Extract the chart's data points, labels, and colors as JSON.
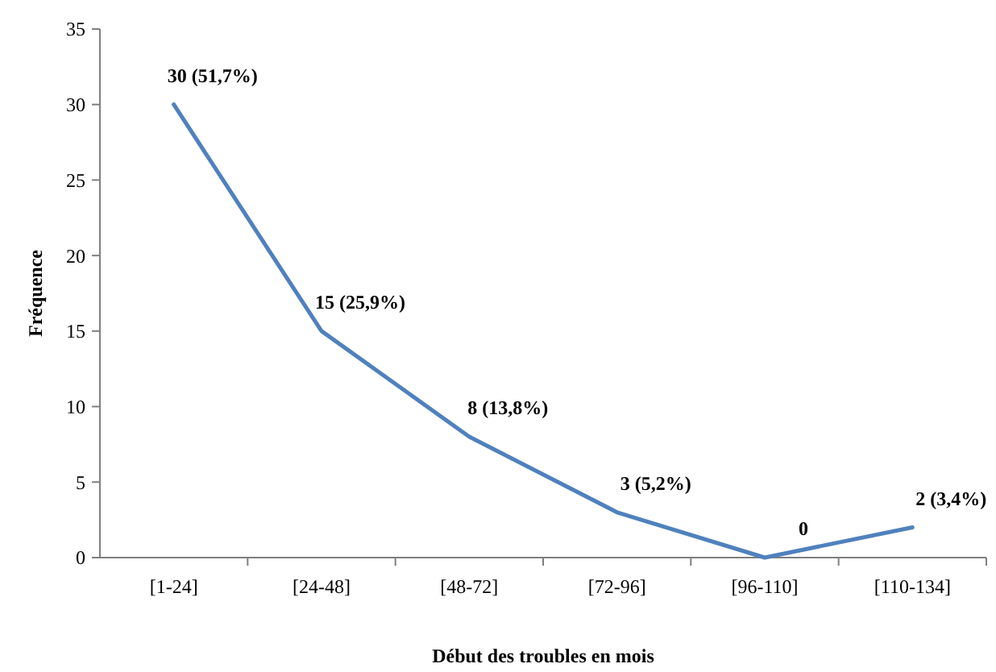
{
  "chart_data": {
    "type": "line",
    "xlabel": "Début des troubles en mois",
    "ylabel": "Fréquence",
    "categories": [
      "[1-24]",
      "[24-48]",
      "[48-72]",
      "[72-96]",
      "[96-110]",
      "[110-134]"
    ],
    "series": [
      {
        "color": "#4f81bd",
        "values": [
          30,
          15,
          8,
          3,
          0,
          2
        ],
        "value_labels": [
          "30 (51,7%)",
          "15 (25,9%)",
          "8 (13,8%)",
          "3 (5,2%)",
          "0",
          "2 (3,4%)"
        ]
      }
    ],
    "ylim": [
      0,
      35
    ],
    "yticks": [
      0,
      5,
      10,
      15,
      20,
      25,
      30,
      35
    ],
    "grid": false,
    "marker": "none",
    "line_style": "solid"
  }
}
